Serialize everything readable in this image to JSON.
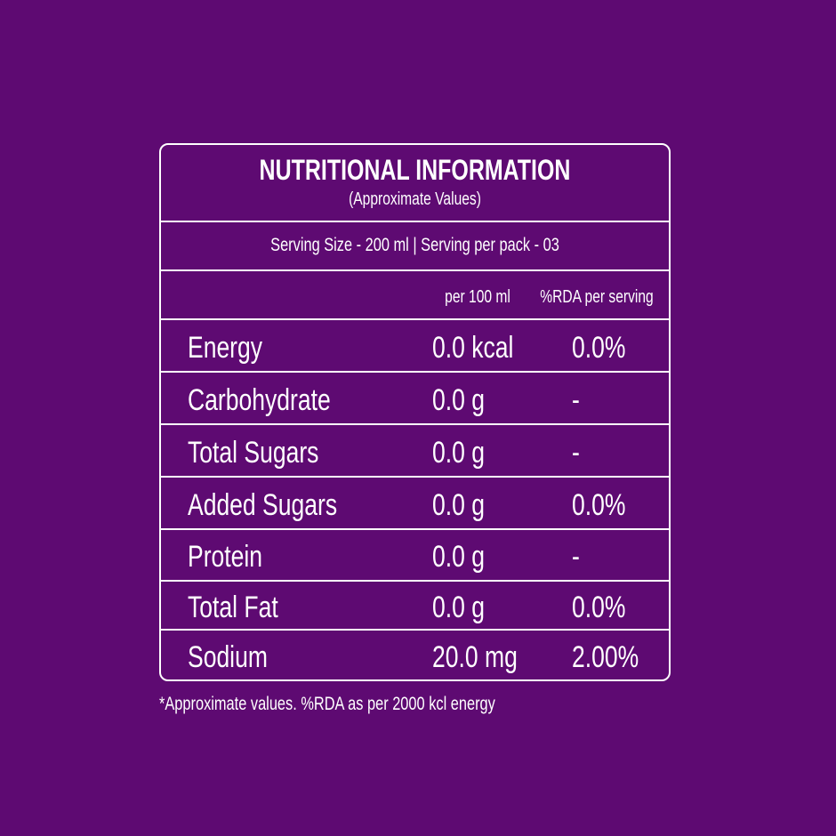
{
  "header": {
    "title": "NUTRITIONAL INFORMATION",
    "subtitle": "(Approximate Values)"
  },
  "serving": "Serving Size - 200 ml | Serving per pack - 03",
  "table": {
    "columns": [
      "per 100 ml",
      "%RDA per serving"
    ],
    "rows": [
      [
        "Energy",
        "0.0 kcal",
        "0.0%"
      ],
      [
        "Carbohydrate",
        "0.0 g",
        "-"
      ],
      [
        "Total Sugars",
        "0.0 g",
        "-"
      ],
      [
        "Added Sugars",
        "0.0 g",
        "0.0%"
      ],
      [
        "Protein",
        "0.0 g",
        "-"
      ],
      [
        "Total Fat",
        "0.0 g",
        "0.0%"
      ],
      [
        "Sodium",
        "20.0 mg",
        "2.00%"
      ]
    ]
  },
  "footnote": "*Approximate values. %RDA as per 2000 kcl energy"
}
